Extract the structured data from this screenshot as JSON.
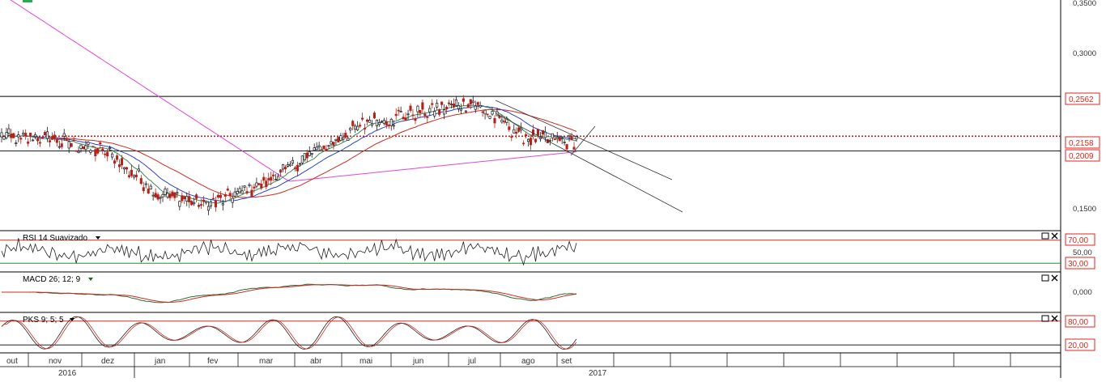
{
  "colors": {
    "candle_up": "#1a1a1a",
    "candle_down": "#b3231b",
    "sma_fast": "#3b8a57",
    "sma_blue": "#2c41c9",
    "sma_red": "#d02a1f",
    "sma_magenta": "#e048d4",
    "hline": "#000000",
    "hline_red_dotted": "#c0231b",
    "indicator_line_black": "#222222",
    "indicator_signal_red": "#d02a1f",
    "indicator_main_green": "#2a6a34",
    "rsi_level_upper": "#d02a1f",
    "rsi_level_lower": "#2a8a3a"
  },
  "price_panel": {
    "y_axis_labels": [
      "0,3500",
      "0,3000",
      "0,1500"
    ],
    "ylim": [
      0.12,
      0.354
    ],
    "hlines": [
      {
        "value": 0.2562,
        "label": "0,2562"
      },
      {
        "value": 0.2158,
        "label": "0,2158",
        "dotted": true
      },
      {
        "value": 0.2009,
        "label": "0,2009"
      }
    ]
  },
  "rsi_panel": {
    "title": "RSI 14 Suavizado",
    "dropdown_icon": "caret-down-icon",
    "levels": [
      "70,00",
      "50,00",
      "30,00"
    ],
    "ylim": [
      15,
      85
    ]
  },
  "macd_panel": {
    "title": "MACD 26; 12; 9",
    "dropdown_icon": "caret-down-icon",
    "levels": [
      "0,000"
    ]
  },
  "pks_panel": {
    "title": "PKS 9; 5; 5",
    "dropdown_icon": "caret-down-icon",
    "levels": [
      "80,00",
      "20,00"
    ],
    "ylim": [
      0,
      100
    ]
  },
  "time_axis": {
    "months": [
      "out",
      "nov",
      "dez",
      "jan",
      "fev",
      "mar",
      "abr",
      "mai",
      "jun",
      "jul",
      "ago",
      "set"
    ],
    "years": [
      "2016",
      "2017"
    ]
  },
  "chart_data": {
    "type": "candlestick",
    "x": [
      "2016-10",
      "2016-11",
      "2016-12",
      "2017-01",
      "2017-02",
      "2017-03",
      "2017-04",
      "2017-05",
      "2017-06",
      "2017-07",
      "2017-08",
      "2017-09"
    ],
    "series": [
      {
        "values": [
          0.215,
          0.212,
          0.2,
          0.158,
          0.146,
          0.168,
          0.2,
          0.23,
          0.24,
          0.25,
          0.215,
          0.21
        ]
      }
    ],
    "ylim": [
      0.12,
      0.354
    ]
  }
}
